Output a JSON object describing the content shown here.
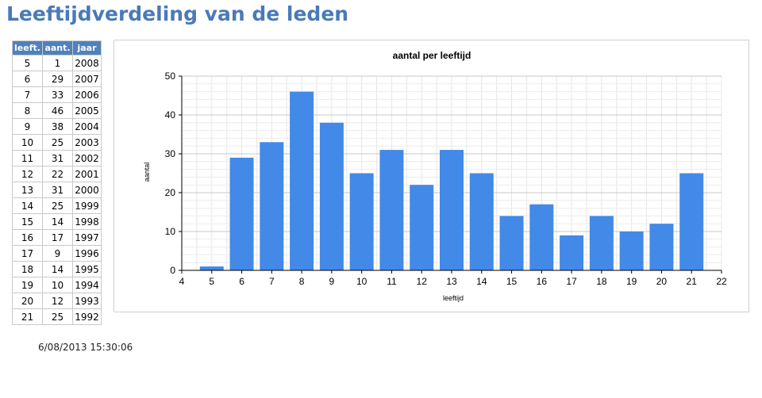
{
  "page": {
    "title": "Leeftijdverdeling van de leden",
    "timestamp": "6/08/2013 15:30:06"
  },
  "table": {
    "headers": [
      "leeft.",
      "aant.",
      "jaar"
    ],
    "rows": [
      [
        "5",
        "1",
        "2008"
      ],
      [
        "6",
        "29",
        "2007"
      ],
      [
        "7",
        "33",
        "2006"
      ],
      [
        "8",
        "46",
        "2005"
      ],
      [
        "9",
        "38",
        "2004"
      ],
      [
        "10",
        "25",
        "2003"
      ],
      [
        "11",
        "31",
        "2002"
      ],
      [
        "12",
        "22",
        "2001"
      ],
      [
        "13",
        "31",
        "2000"
      ],
      [
        "14",
        "25",
        "1999"
      ],
      [
        "15",
        "14",
        "1998"
      ],
      [
        "16",
        "17",
        "1997"
      ],
      [
        "17",
        "9",
        "1996"
      ],
      [
        "18",
        "14",
        "1995"
      ],
      [
        "19",
        "10",
        "1994"
      ],
      [
        "20",
        "12",
        "1993"
      ],
      [
        "21",
        "25",
        "1992"
      ]
    ]
  },
  "chart_data": {
    "type": "bar",
    "title": "aantal per leeftijd",
    "xlabel": "leeftijd",
    "ylabel": "aantal",
    "x": [
      5,
      6,
      7,
      8,
      9,
      10,
      11,
      12,
      13,
      14,
      15,
      16,
      17,
      18,
      19,
      20,
      21
    ],
    "values": [
      1,
      29,
      33,
      46,
      38,
      25,
      31,
      22,
      31,
      25,
      14,
      17,
      9,
      14,
      10,
      12,
      25
    ],
    "xlim": [
      4,
      22
    ],
    "ylim": [
      0,
      50
    ],
    "xticks": [
      4,
      5,
      6,
      7,
      8,
      9,
      10,
      11,
      12,
      13,
      14,
      15,
      16,
      17,
      18,
      19,
      20,
      21,
      22
    ],
    "yticks": [
      0,
      10,
      20,
      30,
      40,
      50
    ],
    "bar_color": "#4289e8",
    "grid": true,
    "legend": "none"
  }
}
